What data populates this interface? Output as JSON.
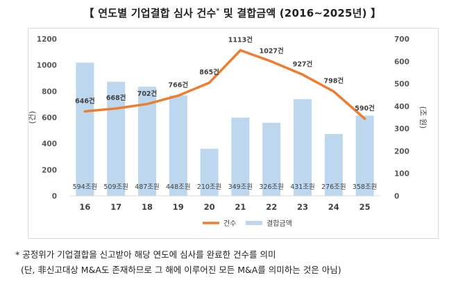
{
  "title": {
    "bracket_open": "【",
    "main": "연도별 기업결합 심사 건수",
    "sup": "*",
    "rest": "및 결합금액 (2016~2025년)",
    "bracket_close": "】"
  },
  "chart_data": {
    "type": "bar+line",
    "categories": [
      "16",
      "17",
      "18",
      "19",
      "20",
      "21",
      "22",
      "23",
      "24",
      "25"
    ],
    "series": [
      {
        "name": "건수",
        "type": "line",
        "axis": "left",
        "color": "#ED7D31",
        "values": [
          646,
          668,
          702,
          766,
          865,
          1113,
          1027,
          927,
          798,
          590
        ],
        "labels": [
          "646건",
          "668건",
          "702건",
          "766건",
          "865건",
          "1113건",
          "1027건",
          "927건",
          "798건",
          "590건"
        ]
      },
      {
        "name": "결합금액",
        "type": "bar",
        "axis": "right",
        "color": "#BDD7EE",
        "values": [
          594,
          509,
          487,
          448,
          210,
          349,
          326,
          431,
          276,
          358
        ],
        "labels": [
          "594조원",
          "509조원",
          "487조원",
          "448조원",
          "210조원",
          "349조원",
          "326조원",
          "431조원",
          "276조원",
          "358조원"
        ]
      }
    ],
    "y_left": {
      "label": "(건)",
      "min": 0,
      "max": 1200,
      "ticks": [
        0,
        200,
        400,
        600,
        800,
        1000,
        1200
      ]
    },
    "y_right": {
      "label": "(조 원)",
      "min": 0,
      "max": 700,
      "ticks": [
        0,
        100,
        200,
        300,
        400,
        500,
        600,
        700
      ]
    },
    "legend_position": "bottom-center",
    "grid": false
  },
  "notes": [
    "* 공정위가 기업결합을 신고받아 해당 연도에 심사를 완료한 건수를 의미",
    "(단, 非신고대상 M&A도 존재하므로 그 해에 이루어진 모든 M&A를 의미하는 것은 아님)"
  ]
}
